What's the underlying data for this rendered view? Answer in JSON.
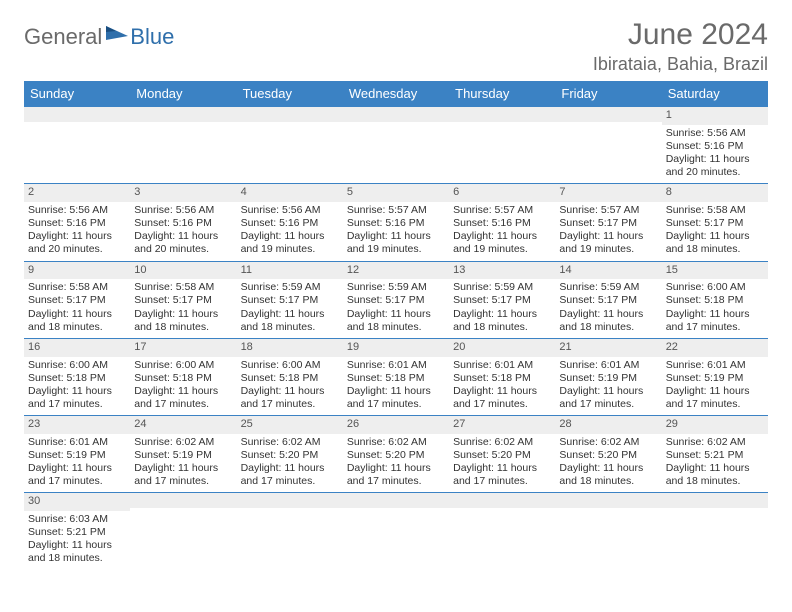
{
  "brand": {
    "gray": "General",
    "blue": "Blue"
  },
  "title": "June 2024",
  "location": "Ibirataia, Bahia, Brazil",
  "colors": {
    "header_bg": "#3b82c4",
    "header_fg": "#ffffff",
    "daynum_bg": "#eeeeee",
    "border": "#3b82c4",
    "text": "#333333",
    "title": "#6a6a6a"
  },
  "columns": [
    "Sunday",
    "Monday",
    "Tuesday",
    "Wednesday",
    "Thursday",
    "Friday",
    "Saturday"
  ],
  "weeks": [
    [
      null,
      null,
      null,
      null,
      null,
      null,
      {
        "n": "1",
        "sr": "Sunrise: 5:56 AM",
        "ss": "Sunset: 5:16 PM",
        "dl": "Daylight: 11 hours and 20 minutes."
      }
    ],
    [
      {
        "n": "2",
        "sr": "Sunrise: 5:56 AM",
        "ss": "Sunset: 5:16 PM",
        "dl": "Daylight: 11 hours and 20 minutes."
      },
      {
        "n": "3",
        "sr": "Sunrise: 5:56 AM",
        "ss": "Sunset: 5:16 PM",
        "dl": "Daylight: 11 hours and 20 minutes."
      },
      {
        "n": "4",
        "sr": "Sunrise: 5:56 AM",
        "ss": "Sunset: 5:16 PM",
        "dl": "Daylight: 11 hours and 19 minutes."
      },
      {
        "n": "5",
        "sr": "Sunrise: 5:57 AM",
        "ss": "Sunset: 5:16 PM",
        "dl": "Daylight: 11 hours and 19 minutes."
      },
      {
        "n": "6",
        "sr": "Sunrise: 5:57 AM",
        "ss": "Sunset: 5:16 PM",
        "dl": "Daylight: 11 hours and 19 minutes."
      },
      {
        "n": "7",
        "sr": "Sunrise: 5:57 AM",
        "ss": "Sunset: 5:17 PM",
        "dl": "Daylight: 11 hours and 19 minutes."
      },
      {
        "n": "8",
        "sr": "Sunrise: 5:58 AM",
        "ss": "Sunset: 5:17 PM",
        "dl": "Daylight: 11 hours and 18 minutes."
      }
    ],
    [
      {
        "n": "9",
        "sr": "Sunrise: 5:58 AM",
        "ss": "Sunset: 5:17 PM",
        "dl": "Daylight: 11 hours and 18 minutes."
      },
      {
        "n": "10",
        "sr": "Sunrise: 5:58 AM",
        "ss": "Sunset: 5:17 PM",
        "dl": "Daylight: 11 hours and 18 minutes."
      },
      {
        "n": "11",
        "sr": "Sunrise: 5:59 AM",
        "ss": "Sunset: 5:17 PM",
        "dl": "Daylight: 11 hours and 18 minutes."
      },
      {
        "n": "12",
        "sr": "Sunrise: 5:59 AM",
        "ss": "Sunset: 5:17 PM",
        "dl": "Daylight: 11 hours and 18 minutes."
      },
      {
        "n": "13",
        "sr": "Sunrise: 5:59 AM",
        "ss": "Sunset: 5:17 PM",
        "dl": "Daylight: 11 hours and 18 minutes."
      },
      {
        "n": "14",
        "sr": "Sunrise: 5:59 AM",
        "ss": "Sunset: 5:17 PM",
        "dl": "Daylight: 11 hours and 18 minutes."
      },
      {
        "n": "15",
        "sr": "Sunrise: 6:00 AM",
        "ss": "Sunset: 5:18 PM",
        "dl": "Daylight: 11 hours and 17 minutes."
      }
    ],
    [
      {
        "n": "16",
        "sr": "Sunrise: 6:00 AM",
        "ss": "Sunset: 5:18 PM",
        "dl": "Daylight: 11 hours and 17 minutes."
      },
      {
        "n": "17",
        "sr": "Sunrise: 6:00 AM",
        "ss": "Sunset: 5:18 PM",
        "dl": "Daylight: 11 hours and 17 minutes."
      },
      {
        "n": "18",
        "sr": "Sunrise: 6:00 AM",
        "ss": "Sunset: 5:18 PM",
        "dl": "Daylight: 11 hours and 17 minutes."
      },
      {
        "n": "19",
        "sr": "Sunrise: 6:01 AM",
        "ss": "Sunset: 5:18 PM",
        "dl": "Daylight: 11 hours and 17 minutes."
      },
      {
        "n": "20",
        "sr": "Sunrise: 6:01 AM",
        "ss": "Sunset: 5:18 PM",
        "dl": "Daylight: 11 hours and 17 minutes."
      },
      {
        "n": "21",
        "sr": "Sunrise: 6:01 AM",
        "ss": "Sunset: 5:19 PM",
        "dl": "Daylight: 11 hours and 17 minutes."
      },
      {
        "n": "22",
        "sr": "Sunrise: 6:01 AM",
        "ss": "Sunset: 5:19 PM",
        "dl": "Daylight: 11 hours and 17 minutes."
      }
    ],
    [
      {
        "n": "23",
        "sr": "Sunrise: 6:01 AM",
        "ss": "Sunset: 5:19 PM",
        "dl": "Daylight: 11 hours and 17 minutes."
      },
      {
        "n": "24",
        "sr": "Sunrise: 6:02 AM",
        "ss": "Sunset: 5:19 PM",
        "dl": "Daylight: 11 hours and 17 minutes."
      },
      {
        "n": "25",
        "sr": "Sunrise: 6:02 AM",
        "ss": "Sunset: 5:20 PM",
        "dl": "Daylight: 11 hours and 17 minutes."
      },
      {
        "n": "26",
        "sr": "Sunrise: 6:02 AM",
        "ss": "Sunset: 5:20 PM",
        "dl": "Daylight: 11 hours and 17 minutes."
      },
      {
        "n": "27",
        "sr": "Sunrise: 6:02 AM",
        "ss": "Sunset: 5:20 PM",
        "dl": "Daylight: 11 hours and 17 minutes."
      },
      {
        "n": "28",
        "sr": "Sunrise: 6:02 AM",
        "ss": "Sunset: 5:20 PM",
        "dl": "Daylight: 11 hours and 18 minutes."
      },
      {
        "n": "29",
        "sr": "Sunrise: 6:02 AM",
        "ss": "Sunset: 5:21 PM",
        "dl": "Daylight: 11 hours and 18 minutes."
      }
    ],
    [
      {
        "n": "30",
        "sr": "Sunrise: 6:03 AM",
        "ss": "Sunset: 5:21 PM",
        "dl": "Daylight: 11 hours and 18 minutes."
      },
      null,
      null,
      null,
      null,
      null,
      null
    ]
  ]
}
